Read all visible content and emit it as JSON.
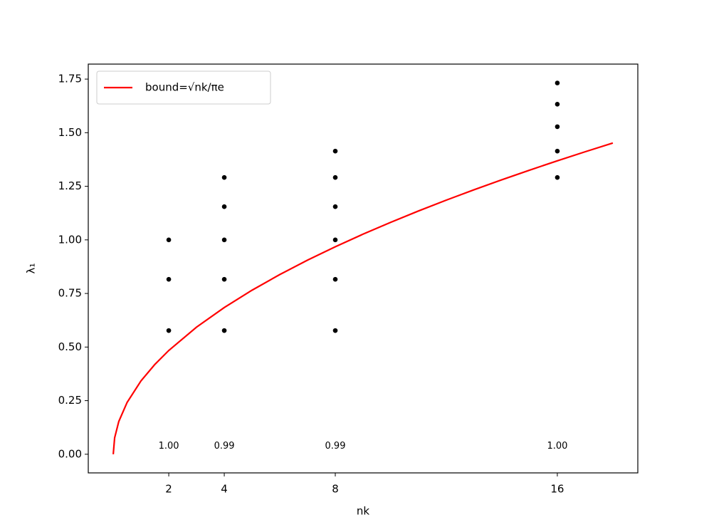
{
  "chart_data": {
    "type": "scatter",
    "xlabel": "nk",
    "ylabel": "λ₁",
    "xlim": [
      -0.9,
      18.9
    ],
    "ylim": [
      -0.087,
      1.82
    ],
    "xticks": [
      2,
      4,
      8,
      16
    ],
    "yticks": [
      {
        "value": 0,
        "label": "0.00"
      },
      {
        "value": 0.25,
        "label": "0.25"
      },
      {
        "value": 0.5,
        "label": "0.50"
      },
      {
        "value": 0.75,
        "label": "0.75"
      },
      {
        "value": 1,
        "label": "1.00"
      },
      {
        "value": 1.25,
        "label": "1.25"
      },
      {
        "value": 1.5,
        "label": "1.50"
      },
      {
        "value": 1.75,
        "label": "1.75"
      }
    ],
    "legend": "upper left",
    "series": [
      {
        "name": "bound=√nk/πe",
        "type": "line",
        "color": "#ff0000",
        "x": [
          0,
          0.05,
          0.2,
          0.5,
          1,
          1.5,
          2,
          3,
          4,
          5,
          6,
          7,
          8,
          9,
          10,
          11,
          12,
          13,
          14,
          15,
          16,
          17,
          18
        ],
        "values": [
          0,
          0.0765,
          0.153,
          0.242,
          0.3422,
          0.4191,
          0.484,
          0.5927,
          0.6844,
          0.7652,
          0.8382,
          0.9054,
          0.9679,
          1.0266,
          1.0821,
          1.135,
          1.1854,
          1.2338,
          1.2804,
          1.3253,
          1.3688,
          1.4109,
          1.4518
        ]
      }
    ],
    "points": {
      "color": "#000000",
      "x": [
        2,
        2,
        2,
        4,
        4,
        4,
        4,
        4,
        8,
        8,
        8,
        8,
        8,
        8,
        16,
        16,
        16,
        16,
        16
      ],
      "values": [
        1.0,
        0.816,
        0.577,
        1.291,
        1.155,
        1.0,
        0.816,
        0.577,
        1.414,
        1.291,
        1.155,
        1.0,
        0.816,
        0.577,
        1.732,
        1.633,
        1.528,
        1.414,
        1.291
      ]
    },
    "annotations": [
      {
        "text": "1.00",
        "x": 2,
        "y": 0.037
      },
      {
        "text": "0.99",
        "x": 4,
        "y": 0.037
      },
      {
        "text": "0.99",
        "x": 8,
        "y": 0.037
      },
      {
        "text": "1.00",
        "x": 16,
        "y": 0.037
      }
    ]
  }
}
